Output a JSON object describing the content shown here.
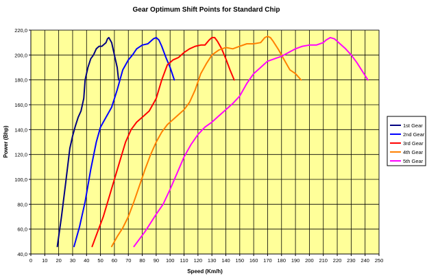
{
  "chart_data": {
    "type": "line",
    "title": "Gear Optimum Shift Points for Standard Chip",
    "xlabel": "Speed (Km/h)",
    "ylabel": "Power (Bhp)",
    "xlim": [
      0,
      250
    ],
    "ylim": [
      40,
      220
    ],
    "x_ticks": [
      "0",
      "10",
      "20",
      "30",
      "40",
      "50",
      "60",
      "70",
      "80",
      "90",
      "100",
      "110",
      "120",
      "130",
      "140",
      "150",
      "160",
      "170",
      "180",
      "190",
      "200",
      "210",
      "220",
      "230",
      "240",
      "250"
    ],
    "y_ticks": [
      "40,0",
      "60,0",
      "80,0",
      "100,0",
      "120,0",
      "140,0",
      "160,0",
      "180,0",
      "200,0",
      "220,0"
    ],
    "grid": true,
    "plot_background": "#ffff99",
    "legend_position": "right",
    "series": [
      {
        "name": "1st Gear",
        "color": "#000080",
        "x": [
          19,
          22,
          25,
          28,
          30,
          32,
          34,
          36,
          38,
          39,
          41,
          43,
          45,
          47,
          49,
          51,
          52,
          54,
          55,
          56,
          58,
          60,
          62,
          63
        ],
        "y": [
          46,
          70,
          97,
          125,
          135,
          143,
          150,
          155,
          165,
          180,
          190,
          197,
          200,
          205,
          207,
          207,
          208,
          210,
          213,
          214,
          210,
          200,
          190,
          180
        ]
      },
      {
        "name": "2nd Gear",
        "color": "#0000ff",
        "x": [
          31,
          35,
          39,
          43,
          47,
          50,
          54,
          58,
          62,
          66,
          70,
          73,
          76,
          80,
          84,
          88,
          90,
          92,
          94,
          97,
          100,
          103
        ],
        "y": [
          46,
          62,
          82,
          108,
          130,
          142,
          150,
          158,
          172,
          188,
          196,
          200,
          205,
          208,
          209,
          213,
          214,
          212,
          207,
          198,
          190,
          180
        ]
      },
      {
        "name": "3rd Gear",
        "color": "#ff0000",
        "x": [
          44,
          48,
          52,
          56,
          60,
          64,
          68,
          72,
          76,
          80,
          85,
          90,
          94,
          98,
          102,
          106,
          110,
          114,
          118,
          122,
          125,
          128,
          130,
          132,
          134,
          137,
          140,
          143,
          146
        ],
        "y": [
          46,
          58,
          70,
          85,
          100,
          115,
          130,
          140,
          146,
          150,
          155,
          165,
          180,
          192,
          196,
          198,
          202,
          205,
          207,
          208,
          208,
          212,
          214,
          214,
          211,
          205,
          197,
          188,
          180
        ]
      },
      {
        "name": "4th Gear",
        "color": "#ff8000",
        "x": [
          58,
          62,
          66,
          70,
          74,
          78,
          82,
          86,
          90,
          94,
          98,
          102,
          106,
          110,
          114,
          118,
          122,
          126,
          130,
          135,
          140,
          145,
          150,
          155,
          160,
          165,
          168,
          170,
          172,
          174,
          178,
          182,
          186,
          190,
          194
        ],
        "y": [
          46,
          54,
          61,
          70,
          82,
          95,
          108,
          120,
          130,
          138,
          144,
          148,
          152,
          156,
          162,
          172,
          185,
          193,
          200,
          204,
          206,
          205,
          207,
          209,
          209,
          210,
          214,
          215,
          214,
          211,
          204,
          196,
          188,
          185,
          180
        ]
      },
      {
        "name": "5th Gear",
        "color": "#ff00ff",
        "x": [
          74,
          78,
          82,
          86,
          90,
          95,
          100,
          105,
          110,
          115,
          120,
          125,
          130,
          135,
          140,
          145,
          150,
          155,
          160,
          165,
          170,
          175,
          180,
          185,
          190,
          195,
          200,
          205,
          210,
          212,
          215,
          218,
          222,
          226,
          230,
          234,
          238,
          242
        ],
        "y": [
          46,
          52,
          58,
          65,
          72,
          80,
          92,
          105,
          118,
          128,
          136,
          142,
          146,
          151,
          156,
          161,
          167,
          177,
          185,
          190,
          195,
          197,
          199,
          202,
          205,
          207,
          208,
          208,
          210,
          212,
          214,
          213,
          209,
          205,
          200,
          194,
          187,
          180
        ]
      }
    ]
  }
}
